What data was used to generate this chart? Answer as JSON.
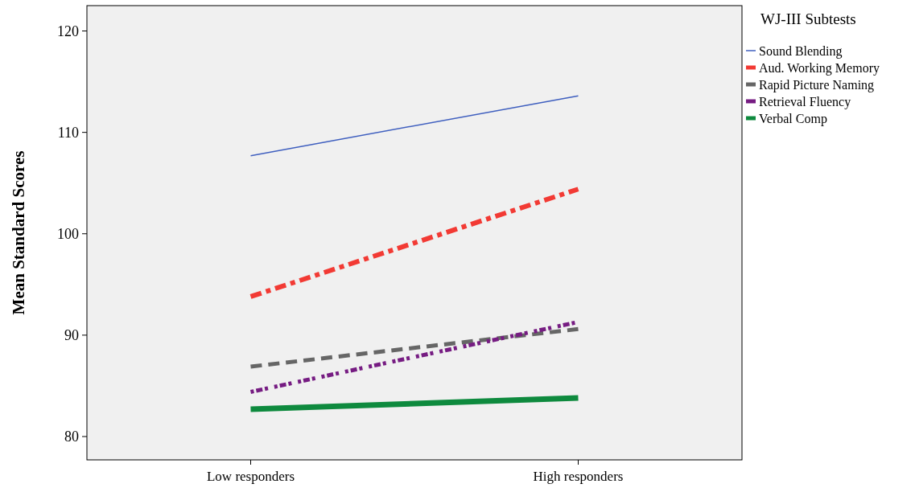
{
  "chart_data": {
    "type": "line",
    "ylabel": "Mean Standard Scores",
    "legend_title": "WJ-III Subtests",
    "categories": [
      "Low responders",
      "High responders"
    ],
    "ylim": [
      77.7,
      122.5
    ],
    "yticks": [
      80,
      90,
      100,
      110,
      120
    ],
    "grid": false,
    "legend": "top right",
    "series": [
      {
        "name": "Sound Blending",
        "color": "#3f5fbf",
        "line_style": "solid",
        "values": [
          107.7,
          113.6
        ]
      },
      {
        "name": "Aud. Working Memory",
        "color": "#f23a34",
        "line_style": "dashed",
        "values": [
          93.8,
          104.4
        ]
      },
      {
        "name": "Rapid Picture Naming",
        "color": "#666666",
        "line_style": "dashed",
        "values": [
          86.9,
          90.6
        ]
      },
      {
        "name": "Retrieval Fluency",
        "color": "#761c82",
        "line_style": "dotted",
        "values": [
          84.4,
          91.3
        ]
      },
      {
        "name": "Verbal Comp",
        "color": "#0e8a3e",
        "line_style": "solid",
        "values": [
          82.7,
          83.8
        ]
      }
    ]
  }
}
